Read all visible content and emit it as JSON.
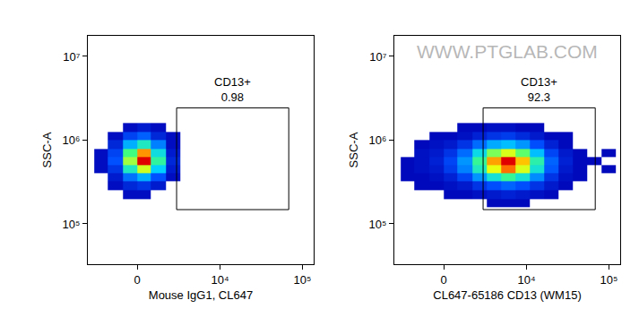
{
  "chart_data": [
    {
      "type": "density",
      "x_label": "Mouse IgG1, CL647",
      "y_label": "SSC-A",
      "log": "y",
      "grid": false,
      "xlim": [
        -3700,
        137000
      ],
      "ylim": [
        33000,
        17600000
      ],
      "xticks": [
        0,
        {
          "value": 10000,
          "label": "10⁴"
        },
        {
          "value": 100000,
          "label": "10⁵"
        }
      ],
      "yticks": [
        {
          "value": 100000,
          "label": "10⁵"
        },
        {
          "value": 1000000,
          "label": "10⁶"
        },
        {
          "value": 10000000,
          "label": "10⁷"
        }
      ],
      "x_bins": [
        -3000,
        -1800,
        -800,
        0,
        800,
        1800,
        3000,
        4800,
        7300,
        11000,
        16400,
        24500,
        36600,
        54600,
        81400,
        121500
      ],
      "y_bins": [
        160000,
        200000,
        250000,
        320000,
        400000,
        500000,
        630000,
        790000,
        1000000,
        1260000,
        1600000,
        2000000
      ],
      "counts": [
        [
          0,
          0,
          0,
          0,
          0,
          0,
          0,
          0,
          0,
          0,
          0,
          0,
          0,
          0,
          0
        ],
        [
          0,
          0,
          1,
          1,
          0,
          0,
          0,
          0,
          0,
          0,
          0,
          0,
          0,
          0,
          0
        ],
        [
          0,
          1,
          3,
          4,
          2,
          0,
          0,
          0,
          0,
          0,
          0,
          0,
          0,
          0,
          0
        ],
        [
          0,
          2,
          8,
          12,
          6,
          1,
          0,
          0,
          0,
          0,
          0,
          0,
          0,
          0,
          0
        ],
        [
          1,
          4,
          18,
          28,
          14,
          2,
          0,
          0,
          0,
          0,
          0,
          0,
          0,
          0,
          0
        ],
        [
          1,
          6,
          26,
          40,
          20,
          3,
          0,
          0,
          0,
          0,
          0,
          0,
          0,
          0,
          0
        ],
        [
          1,
          5,
          22,
          34,
          16,
          2,
          0,
          0,
          0,
          0,
          0,
          0,
          0,
          0,
          0
        ],
        [
          0,
          3,
          12,
          18,
          9,
          1,
          0,
          0,
          0,
          0,
          0,
          0,
          0,
          0,
          0
        ],
        [
          0,
          1,
          5,
          7,
          3,
          1,
          0,
          0,
          0,
          0,
          0,
          0,
          0,
          0,
          0
        ],
        [
          0,
          0,
          1,
          2,
          1,
          0,
          0,
          0,
          0,
          0,
          0,
          0,
          0,
          0,
          0
        ],
        [
          0,
          0,
          0,
          0,
          0,
          0,
          0,
          0,
          0,
          0,
          0,
          0,
          0,
          0,
          0
        ]
      ],
      "gate": {
        "label": "CD13+",
        "value": 0.98,
        "xlim": [
          2670,
          68400
        ],
        "ylim": [
          148000,
          2430000
        ]
      }
    },
    {
      "type": "density",
      "x_label": "CL647-65186 CD13 (WM15)",
      "y_label": "SSC-A",
      "log": "y",
      "grid": false,
      "annotations": [
        "WWW.PTGLAB.COM"
      ],
      "xlim": [
        -3700,
        137000
      ],
      "ylim": [
        33000,
        17600000
      ],
      "xticks": [
        0,
        {
          "value": 10000,
          "label": "10⁴"
        },
        {
          "value": 100000,
          "label": "10⁵"
        }
      ],
      "yticks": [
        {
          "value": 100000,
          "label": "10⁵"
        },
        {
          "value": 1000000,
          "label": "10⁶"
        },
        {
          "value": 10000000,
          "label": "10⁷"
        }
      ],
      "x_bins": [
        -3000,
        -1800,
        -800,
        0,
        800,
        1800,
        3000,
        4800,
        7300,
        11000,
        16400,
        24500,
        36600,
        54600,
        81400,
        121500
      ],
      "y_bins": [
        160000,
        200000,
        250000,
        320000,
        400000,
        500000,
        630000,
        790000,
        1000000,
        1260000,
        1600000,
        2000000
      ],
      "counts": [
        [
          0,
          0,
          0,
          0,
          0,
          0,
          1,
          1,
          1,
          0,
          0,
          0,
          0,
          0,
          0
        ],
        [
          0,
          0,
          0,
          1,
          1,
          2,
          3,
          4,
          3,
          2,
          1,
          0,
          0,
          0,
          0
        ],
        [
          0,
          1,
          1,
          2,
          3,
          6,
          9,
          11,
          9,
          6,
          3,
          1,
          0,
          0,
          0
        ],
        [
          1,
          1,
          2,
          4,
          8,
          16,
          26,
          32,
          26,
          15,
          6,
          2,
          1,
          0,
          0
        ],
        [
          1,
          2,
          3,
          7,
          14,
          28,
          45,
          55,
          44,
          26,
          10,
          3,
          1,
          0,
          1
        ],
        [
          1,
          2,
          4,
          8,
          16,
          32,
          52,
          62,
          50,
          30,
          11,
          4,
          1,
          1,
          0
        ],
        [
          0,
          2,
          3,
          6,
          12,
          24,
          38,
          44,
          36,
          20,
          8,
          3,
          1,
          0,
          1
        ],
        [
          0,
          1,
          2,
          3,
          6,
          12,
          18,
          20,
          16,
          9,
          4,
          1,
          0,
          0,
          0
        ],
        [
          0,
          0,
          1,
          1,
          2,
          4,
          6,
          7,
          5,
          3,
          1,
          1,
          0,
          0,
          0
        ],
        [
          0,
          0,
          0,
          0,
          1,
          1,
          2,
          2,
          1,
          1,
          0,
          0,
          0,
          0,
          0
        ],
        [
          0,
          0,
          0,
          0,
          0,
          0,
          0,
          0,
          0,
          0,
          0,
          0,
          0,
          0,
          0
        ]
      ],
      "gate": {
        "label": "CD13+",
        "value": 92.3,
        "xlim": [
          2670,
          68400
        ],
        "ylim": [
          148000,
          2430000
        ]
      }
    }
  ]
}
